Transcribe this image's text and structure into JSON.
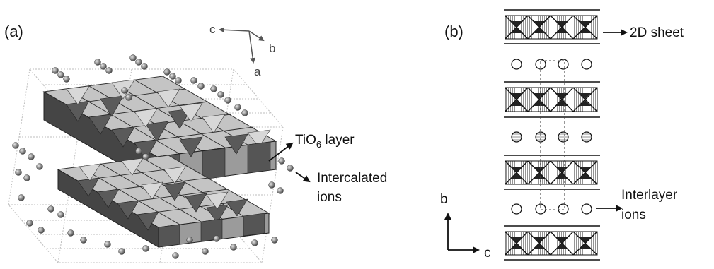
{
  "panels": {
    "a": {
      "label": "(a)",
      "axes": {
        "c": "c",
        "b": "b",
        "a": "a"
      },
      "annotations": {
        "tio6_prefix": "TiO",
        "tio6_sub": "6",
        "tio6_suffix": " layer",
        "intercalated_line1": "Intercalated",
        "intercalated_line2": "ions"
      }
    },
    "b": {
      "label": "(b)",
      "axes": {
        "b": "b",
        "c": "c"
      },
      "annotations": {
        "sheet": "2D sheet",
        "interlayer_line1": "Interlayer",
        "interlayer_line2": "ions"
      }
    }
  },
  "colors": {
    "octa_light": "#c9c9c9",
    "octa_mid": "#9a9a9a",
    "octa_dark": "#3c3c3c",
    "ion": "#8a8a8a",
    "line": "#111111"
  }
}
